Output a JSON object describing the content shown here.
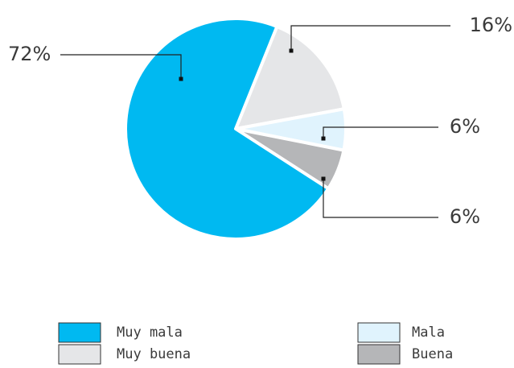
{
  "chart_data": {
    "type": "pie",
    "categories": [
      "Muy buena",
      "Mala",
      "Buena",
      "Muy mala"
    ],
    "values": [
      16,
      6,
      6,
      72
    ],
    "value_labels": [
      "16%",
      "6%",
      "6%",
      "72%"
    ],
    "colors": [
      "#e5e6e8",
      "#e0f3fd",
      "#b5b6b8",
      "#00b9f1"
    ],
    "legend": "bottom"
  }
}
